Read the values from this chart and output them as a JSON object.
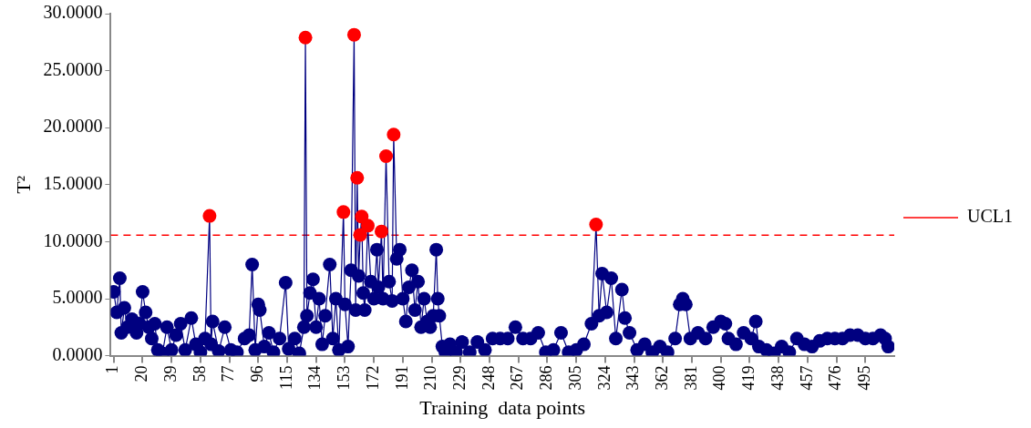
{
  "chart_data": {
    "type": "line",
    "xlabel": "Training  data points",
    "ylabel": "T²",
    "marker": "circle",
    "legend": "right",
    "xlim": [
      -1,
      514
    ],
    "xticks": [
      1,
      20,
      39,
      58,
      77,
      96,
      115,
      134,
      153,
      172,
      191,
      210,
      229,
      248,
      267,
      286,
      305,
      324,
      343,
      362,
      381,
      400,
      419,
      438,
      457,
      476,
      495
    ],
    "ylim": [
      0,
      30
    ],
    "yticks": [
      {
        "value": 0,
        "label": "0.0000"
      },
      {
        "value": 5,
        "label": "5.0000"
      },
      {
        "value": 10,
        "label": "10.0000"
      },
      {
        "value": 15,
        "label": "15.0000"
      },
      {
        "value": 20,
        "label": "20.0000"
      },
      {
        "value": 25,
        "label": "25.0000"
      },
      {
        "value": 30,
        "label": "30.0000"
      }
    ],
    "ref_lines": [
      {
        "axis": "y",
        "value": 10.57,
        "label": "UCL1",
        "color": "#ff0000",
        "line_style": "dashed"
      }
    ],
    "series": [
      {
        "color": "#000080",
        "x": [
          1,
          3,
          5,
          6,
          8,
          10,
          13,
          16,
          18,
          20,
          22,
          24,
          26,
          28,
          30,
          33,
          36,
          39,
          42,
          45,
          48,
          52,
          55,
          58,
          61,
          64,
          65,
          66,
          70,
          74,
          78,
          82,
          87,
          90,
          92,
          94,
          96,
          97,
          100,
          103,
          106,
          110,
          114,
          116,
          120,
          123,
          126,
          127,
          128,
          130,
          132,
          134,
          136,
          138,
          140,
          143,
          145,
          147,
          149,
          152,
          153,
          155,
          157,
          159,
          160,
          161,
          162,
          163,
          164,
          165,
          166,
          168,
          170,
          172,
          174,
          175,
          177,
          178,
          180,
          182,
          184,
          185,
          187,
          189,
          191,
          193,
          195,
          197,
          199,
          201,
          203,
          205,
          207,
          209,
          211,
          213,
          214,
          215,
          217,
          219,
          222,
          226,
          230,
          235,
          240,
          245,
          250,
          255,
          260,
          265,
          270,
          275,
          280,
          285,
          290,
          295,
          300,
          305,
          310,
          315,
          318,
          320,
          322,
          325,
          328,
          331,
          335,
          337,
          340,
          345,
          350,
          355,
          360,
          365,
          370,
          373,
          375,
          377,
          380,
          385,
          390,
          395,
          400,
          403,
          405,
          410,
          415,
          420,
          423,
          425,
          430,
          435,
          440,
          445,
          450,
          455,
          460,
          465,
          470,
          475,
          480,
          485,
          490,
          495,
          500,
          505,
          508,
          510
        ],
        "values": [
          5.6,
          3.8,
          6.8,
          2.0,
          4.2,
          2.5,
          3.2,
          2.0,
          2.8,
          5.6,
          3.8,
          2.5,
          1.5,
          2.8,
          0.5,
          0.2,
          2.5,
          0.5,
          1.8,
          2.8,
          0.5,
          3.3,
          1.0,
          0.3,
          1.5,
          12.26,
          1.0,
          3.0,
          0.4,
          2.5,
          0.5,
          0.3,
          1.5,
          1.8,
          8.0,
          0.5,
          4.5,
          4.0,
          0.8,
          2.0,
          0.3,
          1.5,
          6.4,
          0.6,
          1.5,
          0.2,
          2.5,
          27.9,
          3.5,
          5.5,
          6.7,
          2.5,
          5.0,
          1.0,
          3.5,
          8.0,
          1.5,
          5.0,
          0.5,
          12.6,
          4.5,
          0.8,
          7.5,
          28.15,
          4.0,
          15.6,
          7.0,
          10.6,
          12.2,
          5.5,
          4.0,
          11.4,
          6.5,
          5.0,
          9.3,
          6.0,
          10.9,
          5.0,
          17.5,
          6.5,
          4.8,
          19.4,
          8.5,
          9.3,
          5.0,
          3.0,
          6.0,
          7.5,
          4.0,
          6.5,
          2.5,
          5.0,
          3.0,
          2.5,
          3.5,
          9.3,
          5.0,
          3.5,
          0.8,
          0.3,
          1.0,
          0.3,
          1.2,
          0.3,
          1.2,
          0.5,
          1.5,
          1.5,
          1.5,
          2.5,
          1.5,
          1.5,
          2.0,
          0.3,
          0.5,
          2.0,
          0.3,
          0.5,
          1.0,
          2.8,
          11.5,
          3.5,
          7.2,
          3.8,
          6.8,
          1.5,
          5.8,
          3.3,
          2.0,
          0.5,
          1.0,
          0.3,
          0.8,
          0.3,
          1.5,
          4.5,
          5.0,
          4.5,
          1.5,
          2.0,
          1.5,
          2.5,
          3.0,
          2.8,
          1.5,
          1.0,
          2.0,
          1.5,
          3.0,
          0.8,
          0.5,
          0.2,
          0.8,
          0.3,
          1.5,
          1.0,
          0.8,
          1.3,
          1.5,
          1.5,
          1.5,
          1.8,
          1.8,
          1.5,
          1.5,
          1.8,
          1.5,
          0.8
        ],
        "colors": [
          "#000080",
          "#000080",
          "#000080",
          "#000080",
          "#000080",
          "#000080",
          "#000080",
          "#000080",
          "#000080",
          "#000080",
          "#000080",
          "#000080",
          "#000080",
          "#000080",
          "#000080",
          "#000080",
          "#000080",
          "#000080",
          "#000080",
          "#000080",
          "#000080",
          "#000080",
          "#000080",
          "#000080",
          "#000080",
          "#ff0000",
          "#000080",
          "#000080",
          "#000080",
          "#000080",
          "#000080",
          "#000080",
          "#000080",
          "#000080",
          "#000080",
          "#000080",
          "#000080",
          "#000080",
          "#000080",
          "#000080",
          "#000080",
          "#000080",
          "#000080",
          "#000080",
          "#000080",
          "#000080",
          "#000080",
          "#ff0000",
          "#000080",
          "#000080",
          "#000080",
          "#000080",
          "#000080",
          "#000080",
          "#000080",
          "#000080",
          "#000080",
          "#000080",
          "#000080",
          "#ff0000",
          "#000080",
          "#000080",
          "#000080",
          "#ff0000",
          "#000080",
          "#ff0000",
          "#000080",
          "#ff0000",
          "#ff0000",
          "#000080",
          "#000080",
          "#ff0000",
          "#000080",
          "#000080",
          "#000080",
          "#000080",
          "#ff0000",
          "#000080",
          "#ff0000",
          "#000080",
          "#000080",
          "#ff0000",
          "#000080",
          "#000080",
          "#000080",
          "#000080",
          "#000080",
          "#000080",
          "#000080",
          "#000080",
          "#000080",
          "#000080",
          "#000080",
          "#000080",
          "#000080",
          "#000080",
          "#000080",
          "#000080",
          "#000080",
          "#000080",
          "#000080",
          "#000080",
          "#000080",
          "#000080",
          "#000080",
          "#000080",
          "#000080",
          "#000080",
          "#000080",
          "#000080",
          "#000080",
          "#000080",
          "#000080",
          "#000080",
          "#000080",
          "#000080",
          "#000080",
          "#000080",
          "#000080",
          "#000080",
          "#ff0000",
          "#000080",
          "#000080",
          "#000080",
          "#000080",
          "#000080",
          "#000080",
          "#000080",
          "#000080",
          "#000080",
          "#000080",
          "#000080",
          "#000080",
          "#000080",
          "#000080",
          "#000080",
          "#000080",
          "#000080",
          "#000080",
          "#000080",
          "#000080",
          "#000080",
          "#000080",
          "#000080",
          "#000080",
          "#000080",
          "#000080",
          "#000080",
          "#000080",
          "#000080",
          "#000080",
          "#000080",
          "#000080",
          "#000080",
          "#000080",
          "#000080",
          "#000080",
          "#000080",
          "#000080",
          "#000080",
          "#000080",
          "#000080",
          "#000080",
          "#000080",
          "#000080",
          "#000080",
          "#000080",
          "#000080"
        ]
      }
    ]
  }
}
